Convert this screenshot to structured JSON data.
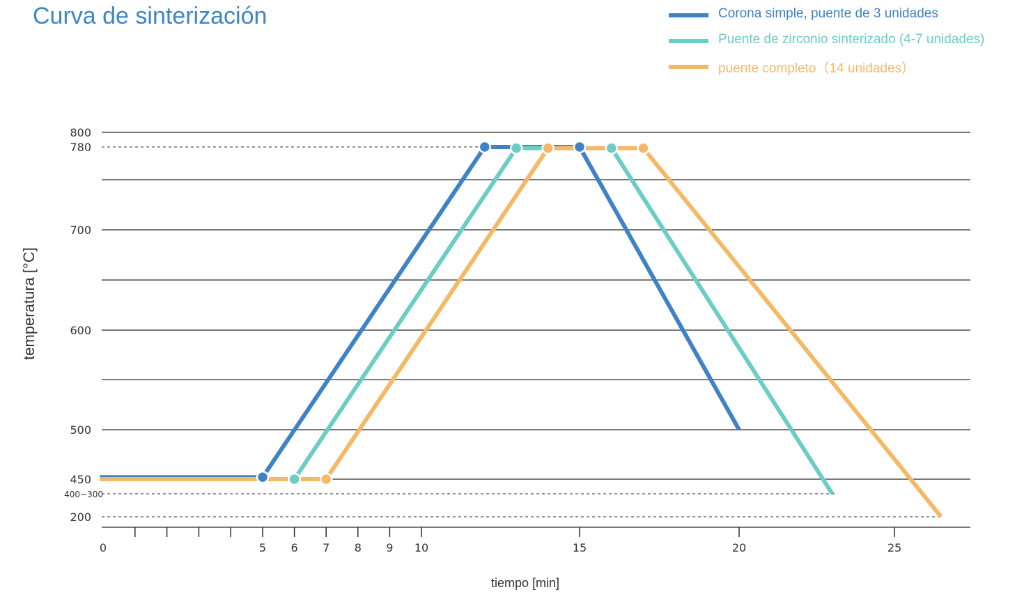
{
  "chart_data": {
    "type": "line",
    "title": "Curva de sinterización",
    "xlabel": "tiempo [min]",
    "ylabel": "temperatura [°C]",
    "grid": true,
    "legend_placement": "top-right",
    "x_ticks": [
      "0",
      "",
      "",
      "",
      "",
      "5",
      "6",
      "7",
      "8",
      "9",
      "10",
      "15",
      "20",
      "25"
    ],
    "x_tick_values": [
      0,
      1,
      2,
      3,
      4,
      5,
      6,
      7,
      8,
      9,
      10,
      15,
      20,
      25
    ],
    "y_tick_labels": [
      {
        "label": "800",
        "value": 800
      },
      {
        "label": "780",
        "value": 780
      },
      {
        "label": "700",
        "value": 700
      },
      {
        "label": "600",
        "value": 600
      },
      {
        "label": "500",
        "value": 500
      },
      {
        "label": "450",
        "value": 450
      },
      {
        "label": "400~300",
        "value": 435
      },
      {
        "label": "200",
        "value": 412
      }
    ],
    "y_gridlines": [
      800,
      753,
      700,
      650,
      600,
      550,
      500,
      450
    ],
    "y_dashed_lines": [
      780,
      435,
      412
    ],
    "series": [
      {
        "name": "Corona simple, puente de 3 unidades",
        "color": "#3f83c6",
        "points": [
          [
            -0.1,
            452
          ],
          [
            5,
            452
          ],
          [
            12,
            780
          ],
          [
            15,
            780
          ],
          [
            20,
            500
          ]
        ],
        "markers": [
          [
            5,
            452
          ],
          [
            12,
            780
          ],
          [
            15,
            780
          ]
        ]
      },
      {
        "name": "Puente de zirconio sinterizado (4-7 unidades)",
        "color": "#6ccdc4",
        "points": [
          [
            -0.1,
            450
          ],
          [
            6,
            450
          ],
          [
            13,
            779
          ],
          [
            16,
            779
          ],
          [
            23,
            435
          ]
        ],
        "markers": [
          [
            6,
            450
          ],
          [
            13,
            779
          ],
          [
            16,
            779
          ]
        ]
      },
      {
        "name": "puente completo（14 unidades）",
        "color": "#f4b966",
        "points": [
          [
            -0.1,
            450
          ],
          [
            7,
            450
          ],
          [
            14,
            779
          ],
          [
            17,
            779
          ],
          [
            26.5,
            412
          ]
        ],
        "markers": [
          [
            7,
            450
          ],
          [
            14,
            779
          ],
          [
            17,
            779
          ]
        ]
      }
    ]
  }
}
